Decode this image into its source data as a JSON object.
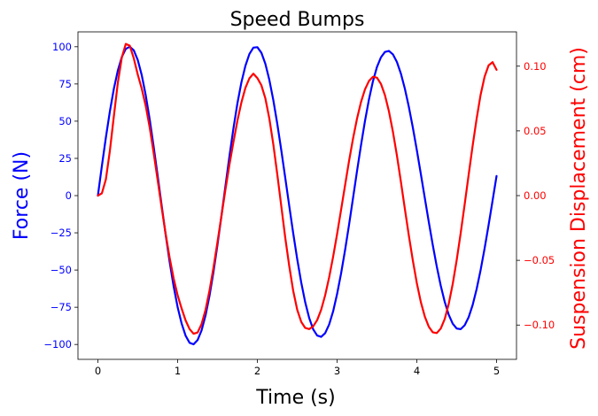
{
  "chart_data": {
    "type": "line",
    "title": "Speed Bumps",
    "xlabel": "Time (s)",
    "ylabel_left": "Force (N)",
    "ylabel_right": "Suspension Displacement (cm)",
    "xlim": [
      -0.25,
      5.25
    ],
    "ylim_left": [
      -110,
      110
    ],
    "ylim_right": [
      -0.1265,
      0.1265
    ],
    "xticks": [
      0,
      1,
      2,
      3,
      4,
      5
    ],
    "yticks_left": [
      100,
      75,
      50,
      25,
      0,
      -25,
      -50,
      -75,
      -100
    ],
    "yticks_right": [
      0.1,
      0.05,
      0.0,
      -0.05,
      -0.1
    ],
    "ytick_labels_left": [
      "100",
      "75",
      "50",
      "25",
      "0",
      "−25",
      "−50",
      "−75",
      "−100"
    ],
    "ytick_labels_right": [
      "0.10",
      "0.05",
      "0.00",
      "−0.05",
      "−0.10"
    ],
    "grid": false,
    "series": [
      {
        "axis": "left",
        "color": "#0000ff",
        "x": [
          0,
          0.05,
          0.1,
          0.15,
          0.2,
          0.25,
          0.3,
          0.35,
          0.4,
          0.45,
          0.5,
          0.55,
          0.6,
          0.65,
          0.7,
          0.75,
          0.8,
          0.85,
          0.9,
          0.95,
          1.0,
          1.05,
          1.1,
          1.15,
          1.2,
          1.25,
          1.3,
          1.35,
          1.4,
          1.45,
          1.5,
          1.55,
          1.6,
          1.65,
          1.7,
          1.75,
          1.8,
          1.85,
          1.9,
          1.95,
          2.0,
          2.05,
          2.1,
          2.15,
          2.2,
          2.25,
          2.3,
          2.35,
          2.4,
          2.45,
          2.5,
          2.55,
          2.6,
          2.65,
          2.7,
          2.75,
          2.8,
          2.85,
          2.9,
          2.95,
          3.0,
          3.05,
          3.1,
          3.15,
          3.2,
          3.25,
          3.3,
          3.35,
          3.4,
          3.45,
          3.5,
          3.55,
          3.6,
          3.65,
          3.7,
          3.75,
          3.8,
          3.85,
          3.9,
          3.95,
          4.0,
          4.05,
          4.1,
          4.15,
          4.2,
          4.25,
          4.3,
          4.35,
          4.4,
          4.45,
          4.5,
          4.55,
          4.6,
          4.65,
          4.7,
          4.75,
          4.8,
          4.85,
          4.9,
          4.95,
          5.0
        ],
        "y": [
          0,
          19.9,
          39.0,
          56.5,
          71.7,
          84.0,
          93.1,
          98.6,
          100.0,
          97.6,
          91.1,
          80.9,
          67.4,
          51.1,
          32.7,
          13.2,
          -6.7,
          -26.3,
          -44.6,
          -61.0,
          -74.9,
          -85.9,
          -94.1,
          -98.9,
          -99.9,
          -97.1,
          -90.6,
          -80.5,
          -67.2,
          -51.2,
          -33.0,
          -13.5,
          6.6,
          26.5,
          45.2,
          62.0,
          76.1,
          87.2,
          95.1,
          99.4,
          99.7,
          96.0,
          88.6,
          77.8,
          64.2,
          48.2,
          30.5,
          11.9,
          -7.0,
          -25.4,
          -42.7,
          -58.3,
          -71.6,
          -82.2,
          -89.8,
          -94.0,
          -94.9,
          -92.4,
          -86.6,
          -77.8,
          -66.1,
          -52.3,
          -36.6,
          -19.6,
          -1.6,
          16.5,
          33.9,
          50.2,
          64.7,
          76.9,
          86.4,
          92.9,
          96.5,
          97.2,
          94.9,
          89.8,
          82.0,
          71.8,
          59.6,
          45.7,
          30.6,
          14.6,
          -1.6,
          -17.7,
          -33.2,
          -47.6,
          -60.5,
          -71.4,
          -80.0,
          -86.0,
          -89.3,
          -89.7,
          -87.1,
          -81.7,
          -73.5,
          -62.8,
          -50.0,
          -35.5,
          -19.8,
          -3.4,
          13.2
        ]
      },
      {
        "axis": "right",
        "color": "#ff0000",
        "x": [
          0,
          0.05,
          0.1,
          0.15,
          0.2,
          0.25,
          0.3,
          0.35,
          0.4,
          0.45,
          0.5,
          0.55,
          0.6,
          0.65,
          0.7,
          0.75,
          0.8,
          0.85,
          0.9,
          0.95,
          1.0,
          1.05,
          1.1,
          1.15,
          1.2,
          1.25,
          1.3,
          1.35,
          1.4,
          1.45,
          1.5,
          1.55,
          1.6,
          1.65,
          1.7,
          1.75,
          1.8,
          1.85,
          1.9,
          1.95,
          2.0,
          2.05,
          2.1,
          2.15,
          2.2,
          2.25,
          2.3,
          2.35,
          2.4,
          2.45,
          2.5,
          2.55,
          2.6,
          2.65,
          2.7,
          2.75,
          2.8,
          2.85,
          2.9,
          2.95,
          3.0,
          3.05,
          3.1,
          3.15,
          3.2,
          3.25,
          3.3,
          3.35,
          3.4,
          3.45,
          3.5,
          3.55,
          3.6,
          3.65,
          3.7,
          3.75,
          3.8,
          3.85,
          3.9,
          3.95,
          4.0,
          4.05,
          4.1,
          4.15,
          4.2,
          4.25,
          4.3,
          4.35,
          4.4,
          4.45,
          4.5,
          4.55,
          4.6,
          4.65,
          4.7,
          4.75,
          4.8,
          4.85,
          4.9,
          4.95,
          5.0
        ],
        "y": [
          0.0,
          0.0018,
          0.0125,
          0.0345,
          0.0612,
          0.0872,
          0.1067,
          0.1172,
          0.1158,
          0.1061,
          0.0935,
          0.0826,
          0.0693,
          0.0525,
          0.0328,
          0.0118,
          -0.0094,
          -0.0297,
          -0.0481,
          -0.064,
          -0.077,
          -0.0872,
          -0.0964,
          -0.1031,
          -0.1067,
          -0.1058,
          -0.0993,
          -0.0883,
          -0.0733,
          -0.0555,
          -0.0358,
          -0.0155,
          0.0048,
          0.024,
          0.0414,
          0.0579,
          0.072,
          0.0832,
          0.0906,
          0.0942,
          0.0908,
          0.0853,
          0.0752,
          0.0596,
          0.0396,
          0.0164,
          -0.0081,
          -0.0326,
          -0.0545,
          -0.0737,
          -0.0882,
          -0.0975,
          -0.1022,
          -0.1031,
          -0.101,
          -0.0962,
          -0.0882,
          -0.0771,
          -0.0632,
          -0.0473,
          -0.0297,
          -0.011,
          0.008,
          0.0268,
          0.0441,
          0.0595,
          0.0723,
          0.0821,
          0.0886,
          0.0918,
          0.0911,
          0.0863,
          0.0776,
          0.0651,
          0.0494,
          0.0311,
          0.0108,
          -0.0103,
          -0.0309,
          -0.0501,
          -0.0676,
          -0.0822,
          -0.0934,
          -0.1013,
          -0.1056,
          -0.1062,
          -0.1027,
          -0.0953,
          -0.0837,
          -0.0683,
          -0.0498,
          -0.029,
          -0.0068,
          0.0161,
          0.0385,
          0.0594,
          0.0779,
          0.0919,
          0.1006,
          0.1031,
          0.0972
        ]
      }
    ]
  }
}
